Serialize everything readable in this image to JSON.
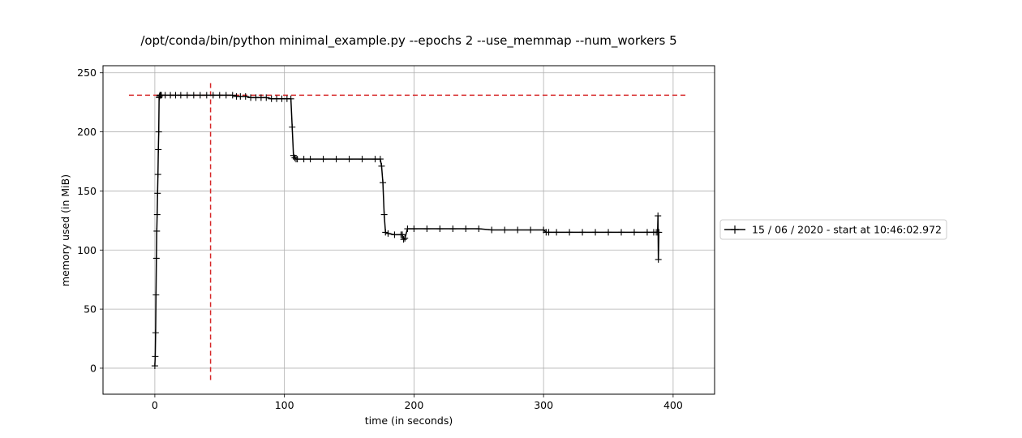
{
  "chart_data": {
    "type": "line",
    "title": "/opt/conda/bin/python minimal_example.py --epochs 2 --use_memmap --num_workers 5",
    "xlabel": "time (in seconds)",
    "ylabel": "memory used (in MiB)",
    "xlim": [
      -40,
      432
    ],
    "ylim": [
      -22,
      256
    ],
    "xticks": [
      0,
      100,
      200,
      300,
      400
    ],
    "yticks": [
      0,
      50,
      100,
      150,
      200,
      250
    ],
    "grid": true,
    "legend_position": "outside-right",
    "series": [
      {
        "name": "15 / 06 / 2020 - start at 10:46:02.972",
        "color": "#000000",
        "marker": "+",
        "x": [
          0,
          0.3,
          0.6,
          0.9,
          1.2,
          1.5,
          1.8,
          2.1,
          2.4,
          2.7,
          3.0,
          3.3,
          3.6,
          3.9,
          4.2,
          4.5,
          5,
          8,
          12,
          16,
          20,
          25,
          30,
          35,
          40,
          45,
          50,
          55,
          60,
          63,
          66,
          70,
          74,
          78,
          82,
          86,
          90,
          94,
          98,
          102,
          105,
          106,
          107,
          108,
          109,
          110,
          115,
          120,
          130,
          140,
          150,
          160,
          170,
          174,
          175,
          176,
          177,
          178,
          180,
          185,
          190,
          191,
          192,
          193,
          195,
          200,
          210,
          220,
          230,
          240,
          250,
          260,
          270,
          280,
          290,
          300,
          302,
          304,
          310,
          320,
          330,
          340,
          350,
          360,
          370,
          380,
          385,
          387,
          388,
          388.3,
          388.6,
          389
        ],
        "y": [
          2,
          10,
          30,
          62,
          93,
          116,
          130,
          148,
          164,
          185,
          200,
          229,
          230,
          231,
          231,
          231,
          231,
          231,
          231,
          231,
          231,
          231,
          231,
          231,
          231,
          231,
          231,
          231,
          231,
          230,
          230,
          230,
          229,
          229,
          229,
          229,
          228,
          228,
          228,
          228,
          228,
          204,
          180,
          178,
          177,
          177,
          177,
          177,
          177,
          177,
          177,
          177,
          177,
          177,
          171,
          157,
          130,
          115,
          114,
          113,
          113,
          113,
          109,
          110,
          118,
          118,
          118,
          118,
          118,
          118,
          118,
          117,
          117,
          117,
          117,
          117,
          115,
          115,
          115,
          115,
          115,
          115,
          115,
          115,
          115,
          115,
          115,
          115,
          115,
          129,
          92,
          115
        ]
      }
    ],
    "reference_lines": [
      {
        "orientation": "horizontal",
        "value": 231,
        "from": -20,
        "to": 410,
        "color": "#d62728",
        "style": "dashed"
      },
      {
        "orientation": "vertical",
        "value": 43,
        "from": -10,
        "to": 243,
        "color": "#d62728",
        "style": "dashed"
      }
    ]
  }
}
